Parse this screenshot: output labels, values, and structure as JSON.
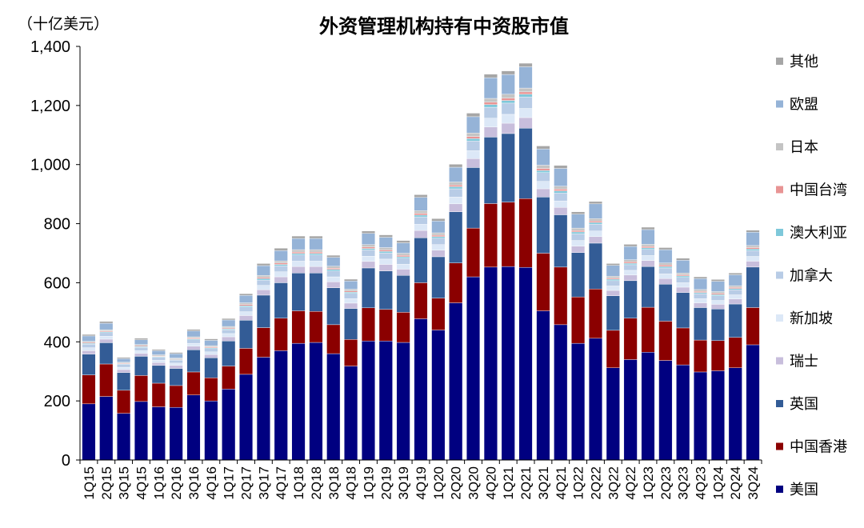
{
  "chart_data": {
    "type": "bar",
    "stacked": true,
    "title": "外资管理机构持有中资股市值",
    "unit_label": "（十亿美元）",
    "ylim": [
      0,
      1400
    ],
    "yticks": [
      "0",
      "200",
      "400",
      "600",
      "800",
      "1,000",
      "1,200",
      "1,400"
    ],
    "ytick_values": [
      0,
      200,
      400,
      600,
      800,
      1000,
      1200,
      1400
    ],
    "grid": false,
    "legend_position": "right",
    "categories": [
      "1Q15",
      "2Q15",
      "3Q15",
      "4Q15",
      "1Q16",
      "2Q16",
      "3Q16",
      "4Q16",
      "1Q17",
      "2Q17",
      "3Q17",
      "4Q17",
      "1Q18",
      "2Q18",
      "3Q18",
      "4Q18",
      "1Q19",
      "2Q19",
      "3Q19",
      "4Q19",
      "1Q20",
      "2Q20",
      "3Q20",
      "4Q20",
      "1Q21",
      "2Q21",
      "3Q21",
      "4Q21",
      "1Q22",
      "2Q22",
      "3Q22",
      "4Q22",
      "1Q23",
      "2Q23",
      "3Q23",
      "4Q23",
      "1Q24",
      "2Q24",
      "3Q24"
    ],
    "series": [
      {
        "name": "美国",
        "color": "#000080",
        "values": [
          190,
          215,
          158,
          198,
          180,
          178,
          220,
          200,
          240,
          290,
          348,
          370,
          395,
          398,
          360,
          318,
          403,
          403,
          398,
          478,
          440,
          532,
          620,
          653,
          655,
          652,
          505,
          458,
          395,
          412,
          312,
          340,
          365,
          337,
          322,
          298,
          302,
          312,
          390
        ]
      },
      {
        "name": "中国香港",
        "color": "#8B0000",
        "values": [
          98,
          110,
          78,
          88,
          80,
          74,
          78,
          78,
          78,
          88,
          100,
          110,
          110,
          105,
          98,
          90,
          112,
          107,
          102,
          122,
          108,
          135,
          165,
          215,
          218,
          233,
          195,
          195,
          157,
          167,
          127,
          140,
          152,
          133,
          125,
          108,
          102,
          103,
          126
        ]
      },
      {
        "name": "英国",
        "color": "#335C96",
        "values": [
          70,
          72,
          60,
          65,
          60,
          58,
          75,
          68,
          85,
          95,
          110,
          120,
          128,
          130,
          125,
          105,
          135,
          130,
          125,
          152,
          140,
          173,
          205,
          225,
          232,
          238,
          190,
          177,
          150,
          155,
          117,
          127,
          138,
          125,
          120,
          110,
          107,
          113,
          137
        ]
      },
      {
        "name": "瑞士",
        "color": "#C8BEDC",
        "values": [
          12,
          12,
          10,
          10,
          10,
          10,
          12,
          11,
          14,
          16,
          18,
          20,
          22,
          22,
          20,
          18,
          22,
          22,
          21,
          25,
          22,
          27,
          30,
          34,
          35,
          36,
          28,
          25,
          22,
          22,
          18,
          19,
          20,
          19,
          18,
          16,
          16,
          17,
          20
        ]
      },
      {
        "name": "新加坡",
        "color": "#DCE8F7",
        "values": [
          10,
          10,
          8,
          9,
          8,
          8,
          10,
          9,
          11,
          13,
          15,
          17,
          18,
          18,
          17,
          15,
          18,
          18,
          17,
          21,
          19,
          23,
          27,
          30,
          30,
          31,
          25,
          22,
          19,
          19,
          15,
          16,
          17,
          16,
          15,
          14,
          13,
          14,
          16
        ]
      },
      {
        "name": "加拿大",
        "color": "#B8CCE6",
        "values": [
          12,
          12,
          10,
          11,
          10,
          10,
          12,
          11,
          13,
          16,
          18,
          20,
          21,
          21,
          20,
          18,
          21,
          21,
          20,
          25,
          22,
          28,
          33,
          37,
          38,
          39,
          30,
          27,
          23,
          23,
          18,
          19,
          21,
          20,
          18,
          17,
          16,
          17,
          20
        ]
      },
      {
        "name": "澳大利亚",
        "color": "#7EC8DA",
        "values": [
          3,
          3,
          2,
          3,
          2,
          2,
          3,
          3,
          3,
          4,
          5,
          5,
          5,
          5,
          5,
          4,
          5,
          5,
          5,
          6,
          5,
          7,
          8,
          9,
          9,
          9,
          7,
          7,
          6,
          6,
          5,
          5,
          5,
          5,
          5,
          4,
          4,
          4,
          5
        ]
      },
      {
        "name": "中国台湾",
        "color": "#E89494",
        "values": [
          3,
          3,
          2,
          3,
          2,
          2,
          3,
          3,
          3,
          4,
          4,
          5,
          5,
          5,
          4,
          4,
          5,
          5,
          5,
          6,
          5,
          6,
          7,
          8,
          8,
          8,
          7,
          6,
          5,
          5,
          4,
          5,
          5,
          5,
          4,
          4,
          4,
          4,
          5
        ]
      },
      {
        "name": "日本",
        "color": "#C4C4C4",
        "values": [
          4,
          4,
          3,
          4,
          4,
          3,
          4,
          4,
          5,
          6,
          7,
          7,
          8,
          8,
          7,
          6,
          8,
          8,
          7,
          9,
          8,
          10,
          12,
          13,
          13,
          13,
          11,
          10,
          8,
          8,
          6,
          7,
          7,
          7,
          6,
          6,
          6,
          6,
          7
        ]
      },
      {
        "name": "欧盟",
        "color": "#95B3D7",
        "values": [
          18,
          22,
          12,
          16,
          14,
          15,
          20,
          18,
          22,
          25,
          33,
          35,
          38,
          38,
          30,
          28,
          38,
          35,
          35,
          45,
          40,
          50,
          55,
          70,
          67,
          72,
          55,
          60,
          47,
          50,
          37,
          45,
          50,
          45,
          43,
          37,
          35,
          37,
          45
        ]
      },
      {
        "name": "其他",
        "color": "#A6A6A6",
        "values": [
          5,
          6,
          4,
          5,
          4,
          4,
          5,
          5,
          5,
          6,
          7,
          8,
          8,
          8,
          7,
          6,
          8,
          8,
          8,
          9,
          8,
          10,
          12,
          12,
          12,
          12,
          10,
          10,
          8,
          8,
          6,
          7,
          8,
          7,
          7,
          6,
          6,
          6,
          7
        ]
      }
    ]
  }
}
